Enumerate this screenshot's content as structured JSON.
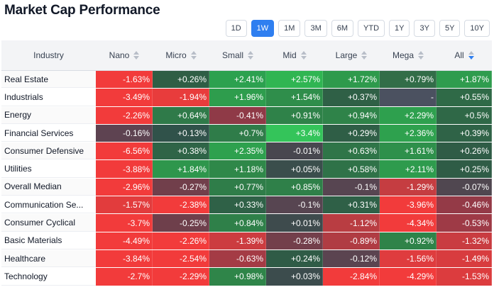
{
  "title": "Market Cap Performance",
  "timeframes": [
    {
      "label": "1D",
      "active": false
    },
    {
      "label": "1W",
      "active": true
    },
    {
      "label": "1M",
      "active": false
    },
    {
      "label": "3M",
      "active": false
    },
    {
      "label": "6M",
      "active": false
    },
    {
      "label": "YTD",
      "active": false
    },
    {
      "label": "1Y",
      "active": false
    },
    {
      "label": "3Y",
      "active": false
    },
    {
      "label": "5Y",
      "active": false
    },
    {
      "label": "10Y",
      "active": false
    }
  ],
  "columns": [
    {
      "label": "Industry",
      "sortable": false
    },
    {
      "label": "Nano",
      "sortable": true
    },
    {
      "label": "Micro",
      "sortable": true
    },
    {
      "label": "Small",
      "sortable": true
    },
    {
      "label": "Mid",
      "sortable": true
    },
    {
      "label": "Large",
      "sortable": true
    },
    {
      "label": "Mega",
      "sortable": true
    },
    {
      "label": "All",
      "sortable": true,
      "active": true
    }
  ],
  "colors": {
    "active_button": "#2f7ff0",
    "sort_active": "#2f7ff0"
  },
  "rows": [
    {
      "industry": "Real Estate",
      "values": [
        "-1.63%",
        "+0.26%",
        "+2.41%",
        "+2.57%",
        "+1.72%",
        "+0.79%",
        "+1.87%"
      ],
      "colors": [
        "#f23b3b",
        "#2f5e45",
        "#2ca14f",
        "#30b552",
        "#2e9a4c",
        "#326d48",
        "#2f9c4e"
      ]
    },
    {
      "industry": "Industrials",
      "values": [
        "-3.49%",
        "-1.94%",
        "+1.96%",
        "+1.54%",
        "+0.37%",
        "-",
        "+0.55%"
      ],
      "colors": [
        "#f23b3b",
        "#e83c3c",
        "#2e9d4d",
        "#2f8e4b",
        "#2f6046",
        "#4b5160",
        "#2f6a47"
      ]
    },
    {
      "industry": "Energy",
      "values": [
        "-2.26%",
        "+0.64%",
        "-0.41%",
        "+0.91%",
        "+0.94%",
        "+2.29%",
        "+0.5%"
      ],
      "colors": [
        "#f23b3b",
        "#2f7a49",
        "#8f3a47",
        "#2f8249",
        "#2f8349",
        "#2ea04e",
        "#2f6847"
      ]
    },
    {
      "industry": "Financial Services",
      "values": [
        "-0.16%",
        "+0.13%",
        "+0.7%",
        "+3.4%",
        "+0.29%",
        "+2.36%",
        "+0.39%"
      ],
      "colors": [
        "#5e4351",
        "#30524a",
        "#2f7c49",
        "#34c45a",
        "#2f5e46",
        "#2ea14e",
        "#2f6347"
      ]
    },
    {
      "industry": "Consumer Defensive",
      "values": [
        "-6.56%",
        "+0.38%",
        "+2.35%",
        "-0.01%",
        "+0.63%",
        "+1.61%",
        "+0.26%"
      ],
      "colors": [
        "#f23b3b",
        "#2f6447",
        "#2ea14e",
        "#48474f",
        "#2f7548",
        "#2e904b",
        "#2f5c46"
      ]
    },
    {
      "industry": "Utilities",
      "values": [
        "-3.88%",
        "+1.84%",
        "+1.18%",
        "+0.05%",
        "+0.58%",
        "+2.11%",
        "+0.25%"
      ],
      "colors": [
        "#f23b3b",
        "#2e964c",
        "#2f8849",
        "#3a4e4c",
        "#2f7248",
        "#2e9b4d",
        "#2f5c46"
      ]
    },
    {
      "industry": "Overall Median",
      "values": [
        "-2.96%",
        "-0.27%",
        "+0.77%",
        "+0.85%",
        "-0.1%",
        "-1.29%",
        "-0.07%"
      ],
      "colors": [
        "#f23b3b",
        "#713f4b",
        "#2f7d49",
        "#2f8049",
        "#574551",
        "#c53d41",
        "#504750"
      ]
    },
    {
      "industry": "Communication Se...",
      "values": [
        "-1.57%",
        "-2.38%",
        "+0.33%",
        "-0.1%",
        "+0.31%",
        "-3.96%",
        "-0.46%"
      ],
      "colors": [
        "#e23c3d",
        "#f23b3b",
        "#2f6147",
        "#574551",
        "#2f6047",
        "#f23b3b",
        "#943a47"
      ]
    },
    {
      "industry": "Consumer Cyclical",
      "values": [
        "-3.7%",
        "-0.25%",
        "+0.84%",
        "+0.01%",
        "-1.12%",
        "-4.34%",
        "-0.53%"
      ],
      "colors": [
        "#f23b3b",
        "#6e3f4b",
        "#2f8049",
        "#3e4b4d",
        "#b93d42",
        "#f23b3b",
        "#9e3a46"
      ]
    },
    {
      "industry": "Basic Materials",
      "values": [
        "-4.49%",
        "-2.26%",
        "-1.39%",
        "-0.28%",
        "-0.89%",
        "+0.92%",
        "-1.32%"
      ],
      "colors": [
        "#f23b3b",
        "#f23b3b",
        "#cc3c40",
        "#733f4b",
        "#b03c43",
        "#2f8349",
        "#c93c41"
      ]
    },
    {
      "industry": "Healthcare",
      "values": [
        "-3.84%",
        "-2.54%",
        "-0.63%",
        "+0.24%",
        "-0.12%",
        "-1.56%",
        "-1.49%"
      ],
      "colors": [
        "#f23b3b",
        "#f23b3b",
        "#a43b45",
        "#2f5b46",
        "#5b4450",
        "#df3c3e",
        "#d83c3f"
      ]
    },
    {
      "industry": "Technology",
      "values": [
        "-2.7%",
        "-2.29%",
        "+0.98%",
        "+0.03%",
        "-2.84%",
        "-4.29%",
        "-1.53%"
      ],
      "colors": [
        "#f23b3b",
        "#f23b3b",
        "#2f8549",
        "#3c4c4d",
        "#f23b3b",
        "#f23b3b",
        "#dc3c3e"
      ]
    }
  ]
}
